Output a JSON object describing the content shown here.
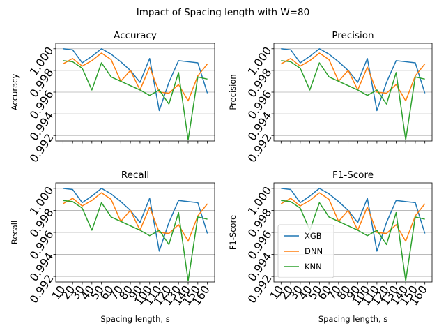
{
  "figure": {
    "suptitle": "Impact of Spacing length with  W=80"
  },
  "colors": {
    "XGB": "#1f77b4",
    "DNN": "#ff7f0e",
    "KNN": "#2ca02c",
    "grid": "#b0b0b0"
  },
  "chart_data": [
    {
      "type": "line",
      "title": "Accuracy",
      "ylabel": "Accuracy",
      "xlabel": "",
      "ylim": [
        0.9915,
        1.0005
      ],
      "yticks": [
        "0.992",
        "0.994",
        "0.996",
        "0.998",
        "1.000"
      ],
      "grid": "y",
      "legend": "none",
      "x": [
        10,
        20,
        30,
        40,
        50,
        60,
        70,
        80,
        90,
        100,
        110,
        120,
        130,
        140,
        150,
        160
      ],
      "series": [
        {
          "name": "XGB",
          "values": [
            1.0,
            0.9999,
            0.9987,
            0.9993,
            1.0,
            0.9995,
            0.9988,
            0.998,
            0.9969,
            0.9991,
            0.9943,
            0.9969,
            0.9989,
            0.9988,
            0.9987,
            0.9959
          ]
        },
        {
          "name": "DNN",
          "values": [
            0.9986,
            0.9991,
            0.9984,
            0.9989,
            0.9996,
            0.999,
            0.997,
            0.998,
            0.9962,
            0.9983,
            0.996,
            0.9959,
            0.9967,
            0.9952,
            0.9975,
            0.9986
          ]
        },
        {
          "name": "KNN",
          "values": [
            0.9989,
            0.9988,
            0.9982,
            0.9962,
            0.9987,
            0.9974,
            0.997,
            0.9966,
            0.9962,
            0.9957,
            0.9962,
            0.9949,
            0.9978,
            0.9916,
            0.9974,
            0.9972
          ]
        }
      ]
    },
    {
      "type": "line",
      "title": "Precision",
      "ylabel": "Precision",
      "xlabel": "",
      "ylim": [
        0.9915,
        1.0005
      ],
      "yticks": [
        "0.992",
        "0.994",
        "0.996",
        "0.998",
        "1.000"
      ],
      "grid": "y",
      "legend": "none",
      "x": [
        10,
        20,
        30,
        40,
        50,
        60,
        70,
        80,
        90,
        100,
        110,
        120,
        130,
        140,
        150,
        160
      ],
      "series": [
        {
          "name": "XGB",
          "values": [
            1.0,
            0.9999,
            0.9987,
            0.9993,
            1.0,
            0.9995,
            0.9988,
            0.998,
            0.9969,
            0.9991,
            0.9943,
            0.9969,
            0.9989,
            0.9988,
            0.9987,
            0.9959
          ]
        },
        {
          "name": "DNN",
          "values": [
            0.9986,
            0.9991,
            0.9984,
            0.9989,
            0.9996,
            0.999,
            0.997,
            0.998,
            0.9962,
            0.9983,
            0.996,
            0.9959,
            0.9967,
            0.9952,
            0.9975,
            0.9986
          ]
        },
        {
          "name": "KNN",
          "values": [
            0.9989,
            0.9988,
            0.9982,
            0.9962,
            0.9987,
            0.9974,
            0.997,
            0.9966,
            0.9962,
            0.9957,
            0.9962,
            0.9949,
            0.9978,
            0.9916,
            0.9974,
            0.9972
          ]
        }
      ]
    },
    {
      "type": "line",
      "title": "Recall",
      "ylabel": "Recall",
      "xlabel": "Spacing length, s",
      "ylim": [
        0.9915,
        1.0005
      ],
      "yticks": [
        "0.992",
        "0.994",
        "0.996",
        "0.998",
        "1.000"
      ],
      "grid": "y",
      "legend": "none",
      "x": [
        10,
        20,
        30,
        40,
        50,
        60,
        70,
        80,
        90,
        100,
        110,
        120,
        130,
        140,
        150,
        160
      ],
      "series": [
        {
          "name": "XGB",
          "values": [
            1.0,
            0.9999,
            0.9987,
            0.9993,
            1.0,
            0.9995,
            0.9988,
            0.998,
            0.9969,
            0.9991,
            0.9943,
            0.9969,
            0.9989,
            0.9988,
            0.9987,
            0.9959
          ]
        },
        {
          "name": "DNN",
          "values": [
            0.9986,
            0.9991,
            0.9984,
            0.9989,
            0.9996,
            0.999,
            0.997,
            0.998,
            0.9962,
            0.9983,
            0.996,
            0.9959,
            0.9967,
            0.9952,
            0.9975,
            0.9986
          ]
        },
        {
          "name": "KNN",
          "values": [
            0.9989,
            0.9988,
            0.9982,
            0.9962,
            0.9987,
            0.9974,
            0.997,
            0.9966,
            0.9962,
            0.9957,
            0.9962,
            0.9949,
            0.9978,
            0.9916,
            0.9974,
            0.9972
          ]
        }
      ]
    },
    {
      "type": "line",
      "title": "F1-Score",
      "ylabel": "F1-Score",
      "xlabel": "Spacing length, s",
      "ylim": [
        0.9915,
        1.0005
      ],
      "yticks": [
        "0.992",
        "0.994",
        "0.996",
        "0.998",
        "1.000"
      ],
      "grid": "y",
      "legend": "lower-left",
      "x": [
        10,
        20,
        30,
        40,
        50,
        60,
        70,
        80,
        90,
        100,
        110,
        120,
        130,
        140,
        150,
        160
      ],
      "series": [
        {
          "name": "XGB",
          "values": [
            1.0,
            0.9999,
            0.9987,
            0.9993,
            1.0,
            0.9995,
            0.9988,
            0.998,
            0.9969,
            0.9991,
            0.9943,
            0.9969,
            0.9989,
            0.9988,
            0.9987,
            0.9959
          ]
        },
        {
          "name": "DNN",
          "values": [
            0.9986,
            0.9991,
            0.9984,
            0.9989,
            0.9996,
            0.999,
            0.997,
            0.998,
            0.9962,
            0.9983,
            0.996,
            0.9959,
            0.9967,
            0.9952,
            0.9975,
            0.9986
          ]
        },
        {
          "name": "KNN",
          "values": [
            0.9989,
            0.9988,
            0.9982,
            0.9962,
            0.9987,
            0.9974,
            0.997,
            0.9966,
            0.9962,
            0.9957,
            0.9962,
            0.9949,
            0.9978,
            0.9916,
            0.9974,
            0.9972
          ]
        }
      ]
    }
  ]
}
